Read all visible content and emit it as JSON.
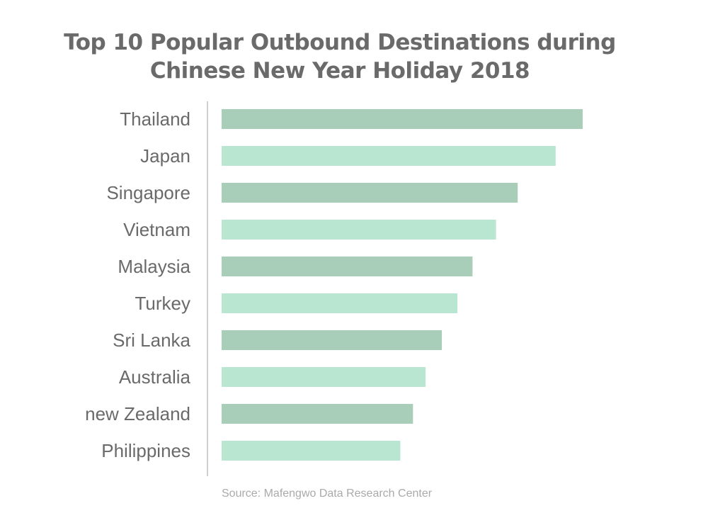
{
  "chart_data": {
    "type": "bar",
    "orientation": "horizontal",
    "title_lines": [
      "Top 10 Popular Outbound Destinations during",
      "Chinese New Year Holiday 2018"
    ],
    "categories": [
      "Thailand",
      "Japan",
      "Singapore",
      "Vietnam",
      "Malaysia",
      "Turkey",
      "Sri Lanka",
      "Australia",
      "new Zealand",
      "Philippines"
    ],
    "values": [
      100,
      92.5,
      82,
      76,
      69.5,
      65.3,
      61,
      56.5,
      53,
      49.5
    ],
    "xlim": [
      0,
      100
    ],
    "grid": false,
    "legend": "none",
    "colors": [
      "#a8cdb8",
      "#b8e6d0"
    ],
    "axis_color": "#d0d0d0",
    "source": "Source: Mafengwo Data Research Center"
  }
}
